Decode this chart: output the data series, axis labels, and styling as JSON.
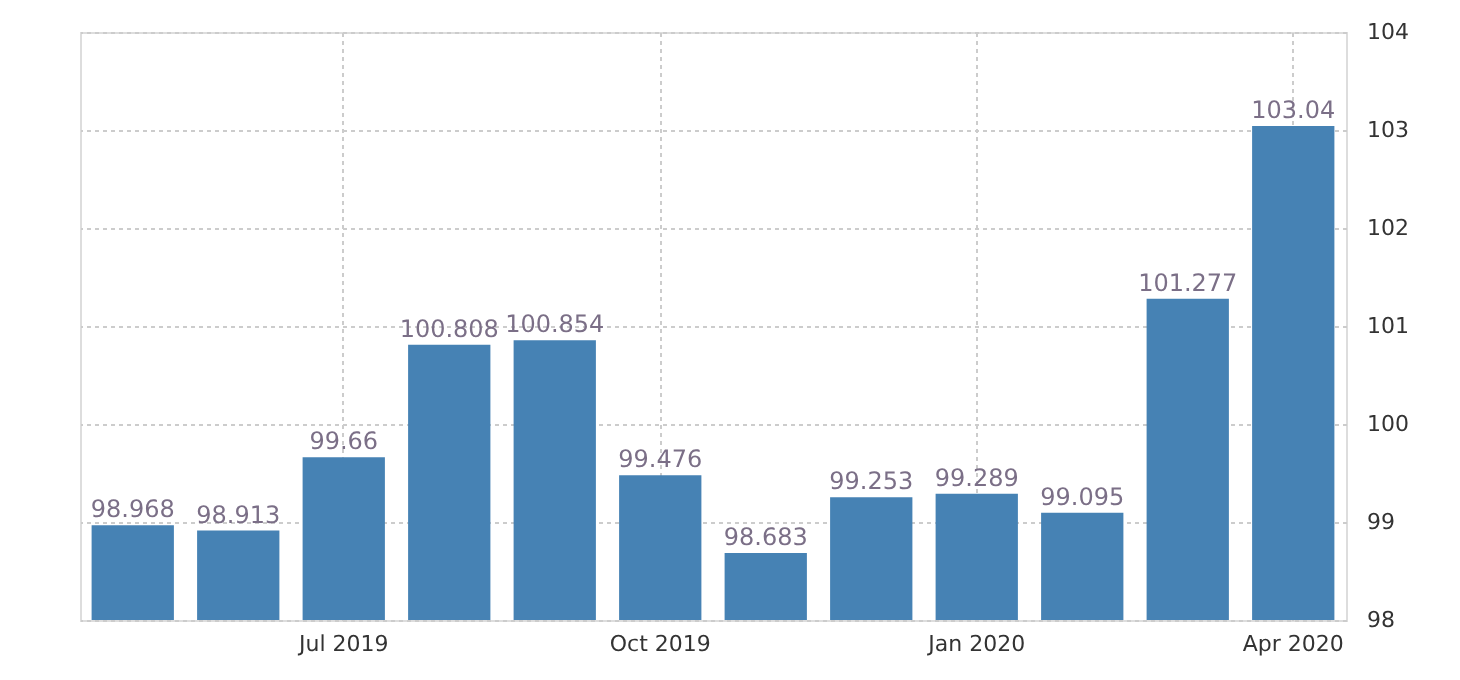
{
  "chart_data": {
    "type": "bar",
    "categories": [
      null,
      null,
      "Jul 2019",
      null,
      null,
      "Oct 2019",
      null,
      null,
      "Jan 2020",
      null,
      null,
      "Apr 2020"
    ],
    "values": [
      98.968,
      98.913,
      99.66,
      100.808,
      100.854,
      99.476,
      98.683,
      99.253,
      99.289,
      99.095,
      101.277,
      103.04
    ],
    "color": "#4682b4",
    "ylim": [
      98,
      104
    ],
    "yticks": [
      98,
      99,
      100,
      101,
      102,
      103,
      104
    ],
    "grid": true,
    "data_labels": true
  }
}
